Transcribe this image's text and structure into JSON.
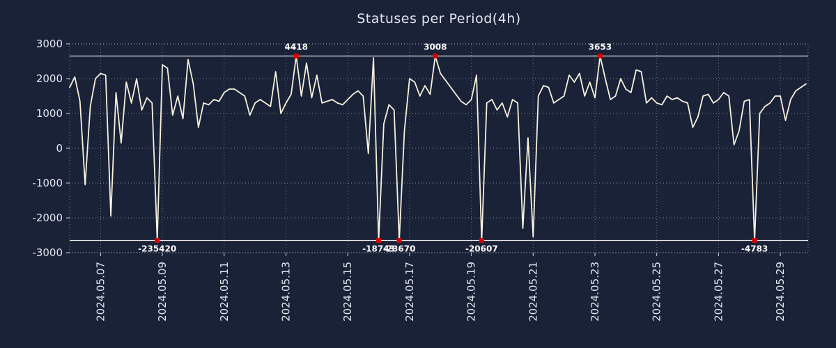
{
  "title": "Statuses per Period(4h)",
  "colors": {
    "background": "#1a2238",
    "text": "#e2e6ee",
    "grid": "#ffffff",
    "clip_line": "#f2f2f2",
    "line": "#f7f1dc",
    "marker": "#d40000",
    "annotation_text": "#ffffff",
    "tick": "#cfd4de"
  },
  "chart_data": {
    "type": "line",
    "title": "Statuses per Period(4h)",
    "xlabel": "",
    "ylabel": "",
    "ylim": [
      -3000,
      3000
    ],
    "yticks": [
      3000,
      2000,
      1000,
      0,
      -1000,
      -2000,
      -3000
    ],
    "xlim": [
      6.0,
      29.9
    ],
    "xticks": [
      {
        "day": 7,
        "label": "2024.05.07"
      },
      {
        "day": 9,
        "label": "2024.05.09"
      },
      {
        "day": 11,
        "label": "2024.05.11"
      },
      {
        "day": 13,
        "label": "2024.05.13"
      },
      {
        "day": 15,
        "label": "2024.05.15"
      },
      {
        "day": 17,
        "label": "2024.05.17"
      },
      {
        "day": 19,
        "label": "2024.05.19"
      },
      {
        "day": 21,
        "label": "2024.05.21"
      },
      {
        "day": 23,
        "label": "2024.05.23"
      },
      {
        "day": 25,
        "label": "2024.05.25"
      },
      {
        "day": 27,
        "label": "2024.05.27"
      },
      {
        "day": 29,
        "label": "2024.05.29"
      }
    ],
    "grid": "dotted",
    "legend": false,
    "clip": {
      "min": -2650,
      "max": 2650
    },
    "x_start": 6.0,
    "x_step": 0.1666667,
    "series": [
      {
        "name": "statuses",
        "values": [
          1750,
          2050,
          1350,
          -1050,
          1200,
          2000,
          2150,
          2100,
          -1950,
          1600,
          150,
          1900,
          1300,
          2000,
          1100,
          1450,
          1300,
          -235420,
          2400,
          2300,
          950,
          1500,
          850,
          2550,
          1850,
          600,
          1300,
          1250,
          1400,
          1350,
          1600,
          1700,
          1700,
          1600,
          1500,
          950,
          1300,
          1400,
          1300,
          1200,
          2200,
          1000,
          1300,
          1550,
          4418,
          1500,
          2450,
          1450,
          2100,
          1300,
          1350,
          1400,
          1300,
          1250,
          1400,
          1550,
          1650,
          1500,
          -150,
          2600,
          -18743,
          700,
          1250,
          1100,
          -23670,
          500,
          2000,
          1900,
          1500,
          1800,
          1550,
          3008,
          2150,
          1950,
          1750,
          1550,
          1350,
          1250,
          1400,
          2100,
          -20607,
          1300,
          1400,
          1100,
          1300,
          900,
          1400,
          1300,
          -2300,
          300,
          -2550,
          1500,
          1800,
          1750,
          1300,
          1400,
          1500,
          2100,
          1900,
          2150,
          1500,
          1900,
          1450,
          3653,
          2000,
          1400,
          1500,
          2000,
          1700,
          1600,
          2250,
          2200,
          1300,
          1450,
          1300,
          1250,
          1500,
          1400,
          1450,
          1350,
          1300,
          600,
          900,
          1500,
          1550,
          1300,
          1400,
          1600,
          1500,
          100,
          500,
          1350,
          1400,
          -4783,
          1000,
          1200,
          1300,
          1500,
          1500,
          800,
          1400,
          1650,
          1750,
          1850
        ]
      }
    ],
    "annotations": [
      {
        "label": "4418",
        "day": 13.3333,
        "value": 4418,
        "position": "top"
      },
      {
        "label": "3008",
        "day": 17.8333,
        "value": 3008,
        "position": "top"
      },
      {
        "label": "3653",
        "day": 23.1667,
        "value": 3653,
        "position": "top"
      },
      {
        "label": "-235420",
        "day": 8.8333,
        "value": -235420,
        "position": "bottom"
      },
      {
        "label": "-18743",
        "day": 16.0,
        "value": -18743,
        "position": "bottom"
      },
      {
        "label": "-23670",
        "day": 16.6667,
        "value": -23670,
        "position": "bottom"
      },
      {
        "label": "-20607",
        "day": 19.3333,
        "value": -20607,
        "position": "bottom"
      },
      {
        "label": "-4783",
        "day": 28.1667,
        "value": -4783,
        "position": "bottom"
      }
    ]
  }
}
